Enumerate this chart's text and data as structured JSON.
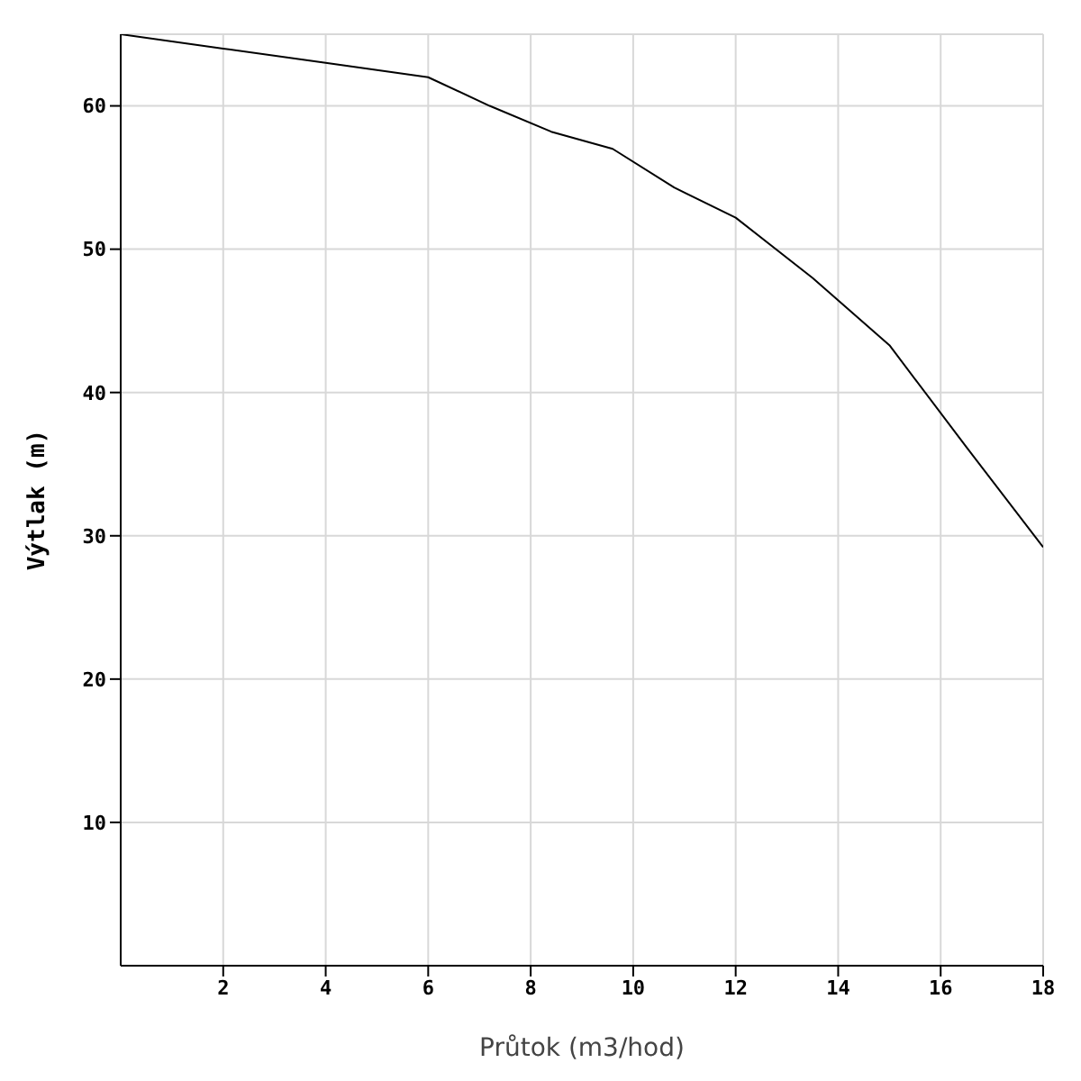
{
  "chart_data": {
    "type": "line",
    "xlabel": "Průtok (m3/hod)",
    "ylabel": "Výtlak (m)",
    "x": [
      0,
      2,
      4,
      6,
      7.2,
      8.4,
      9.6,
      10.8,
      12,
      13.5,
      15,
      16.5,
      18
    ],
    "series": [
      {
        "color": "#000000",
        "values": [
          65,
          64,
          63,
          62,
          60,
          58.2,
          57,
          54.3,
          52.2,
          48,
          43.3,
          36.2,
          29.2
        ]
      }
    ],
    "xlim": [
      0,
      18
    ],
    "xticks": [
      2,
      4,
      6,
      8,
      10,
      12,
      14,
      16,
      18
    ],
    "ylim": [
      0,
      65
    ],
    "yticks": [
      10,
      20,
      30,
      40,
      50,
      60
    ],
    "grid": true,
    "marker": "none",
    "line_style": "solid"
  }
}
